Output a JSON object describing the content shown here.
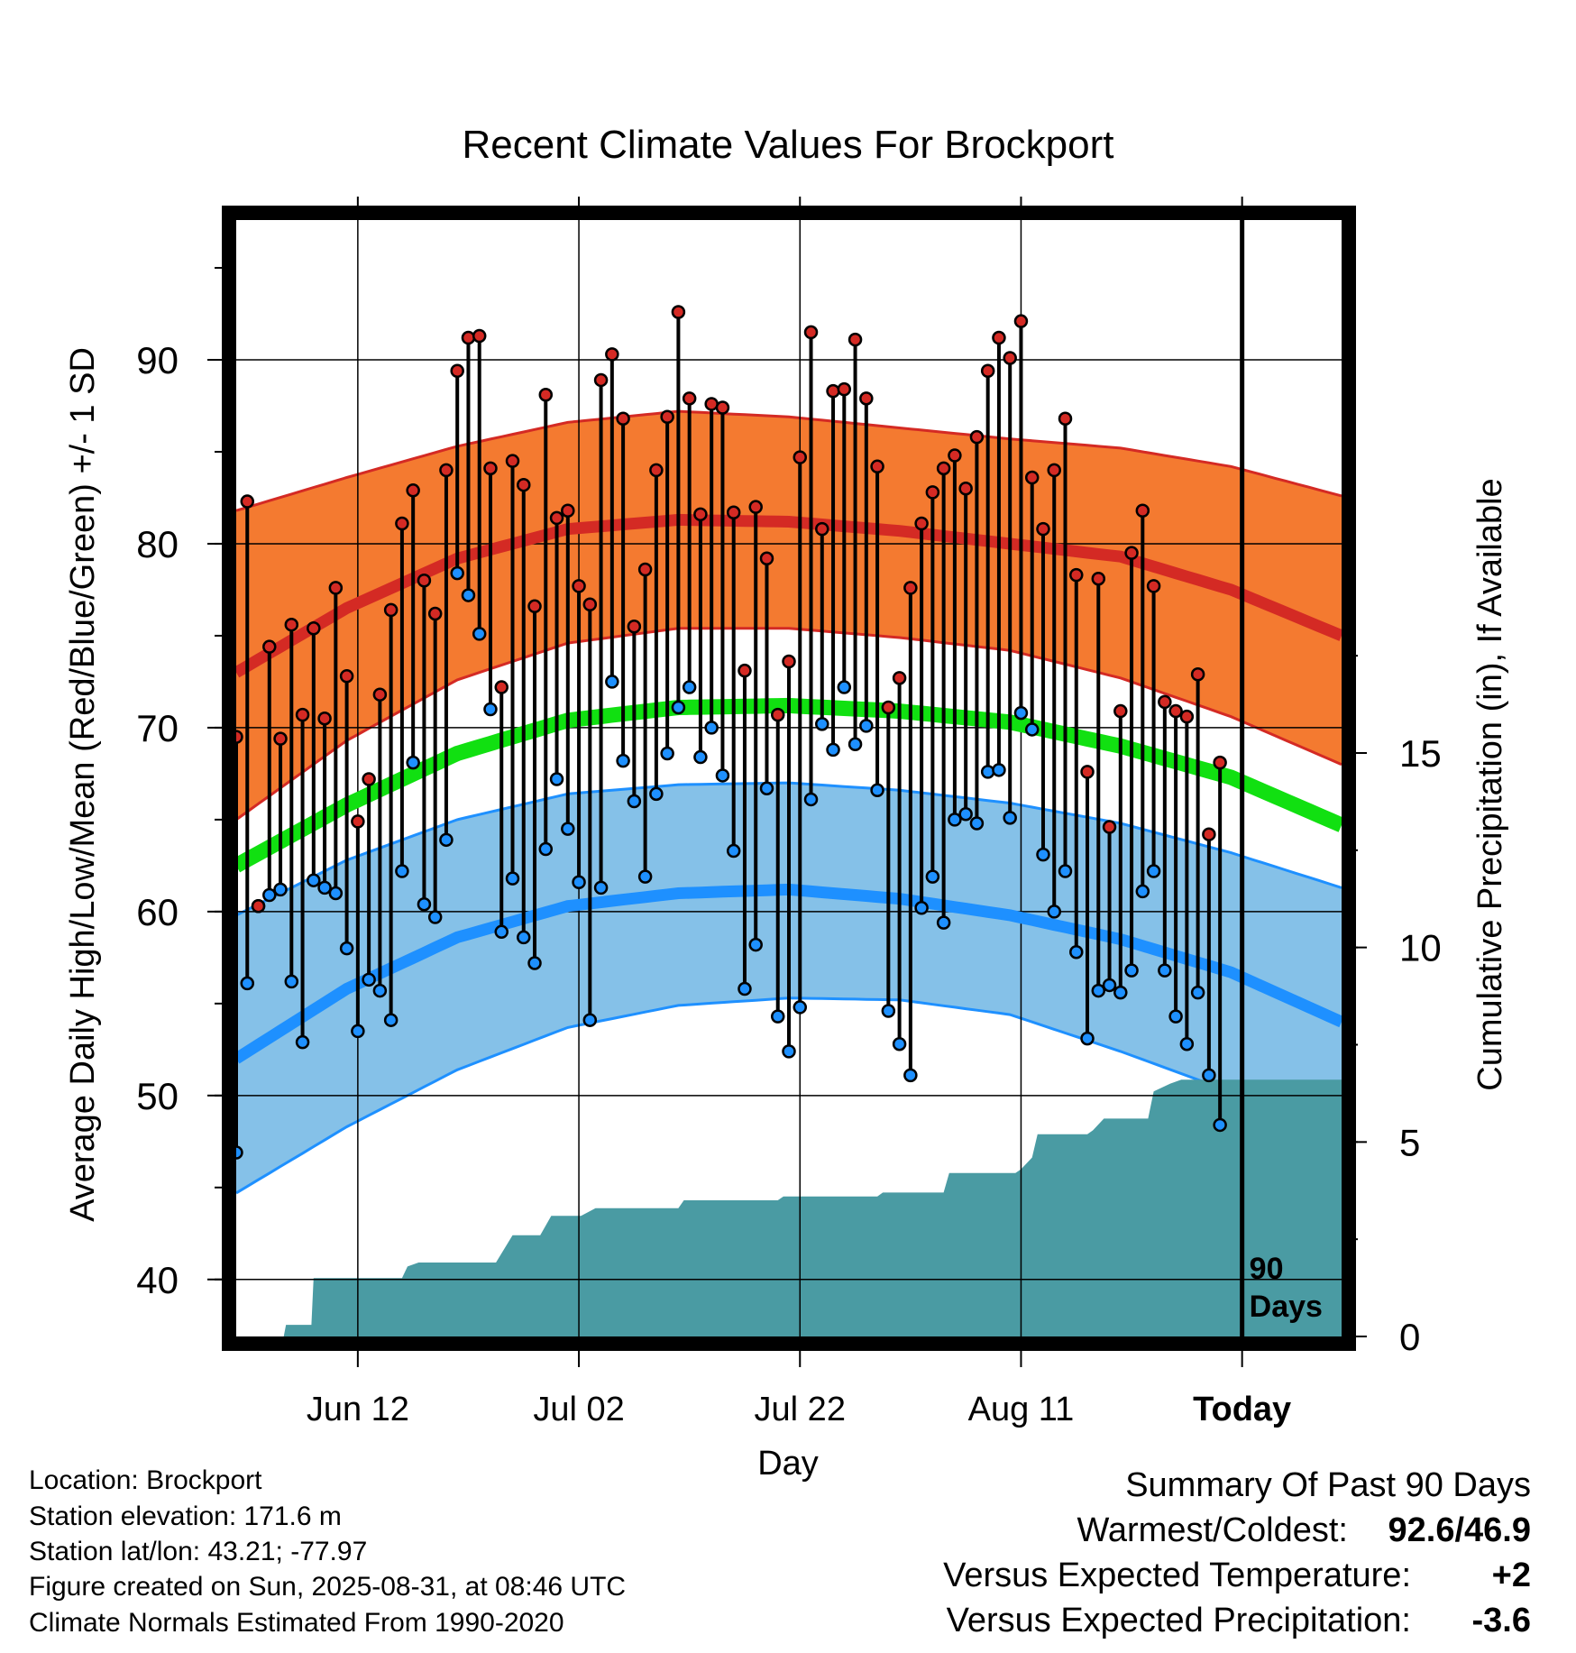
{
  "title": "Recent Climate Values For Brockport",
  "y_axis_label": "Average Daily High/Low/Mean (Red/Blue/Green) +/- 1 SD",
  "y2_axis_label": "Cumulative Precipitation (in), If Available",
  "x_axis_label": "Day",
  "days_label_line1": "90",
  "days_label_line2": "Days",
  "info": {
    "location": "Location: Brockport",
    "elevation": "Station elevation: 171.6 m",
    "latlon": "Station lat/lon: 43.21; -77.97",
    "created": "Figure created on Sun, 2025-08-31, at 08:46 UTC",
    "normals": "Climate Normals Estimated From 1990-2020"
  },
  "summary": {
    "heading": "Summary Of Past 90 Days",
    "warm_cold_label": "Warmest/Coldest:",
    "warm_cold_value": "92.6/46.9",
    "temp_label": "Versus Expected Temperature:",
    "temp_value": "+2",
    "precip_label": "Versus Expected Precipitation:",
    "precip_value": "-3.6"
  },
  "colors": {
    "high_band": "#f47a30",
    "high_line": "#d42a24",
    "mean_line": "#11e011",
    "low_band": "#85c1e8",
    "low_line": "#1e90ff",
    "precip_fill": "#4a9ba3",
    "high_marker": "#d42a24",
    "low_marker": "#1e90ff",
    "temp_delta": "#d42a24",
    "precip_delta": "#a0522d"
  },
  "chart_data": {
    "type": "line",
    "x_ticks": [
      {
        "day": 11,
        "label": "Jun 12"
      },
      {
        "day": 31,
        "label": "Jul 02"
      },
      {
        "day": 51,
        "label": "Jul 22"
      },
      {
        "day": 71,
        "label": "Aug 11"
      },
      {
        "day": 91,
        "label": "Today"
      }
    ],
    "y_ticks": [
      40,
      50,
      60,
      70,
      80,
      90
    ],
    "y2_ticks": [
      0,
      5,
      10,
      15
    ],
    "ylim": [
      36.9,
      97.6
    ],
    "y2lim": [
      0,
      28.7
    ],
    "xlim": [
      0,
      100
    ],
    "today_day": 91,
    "normals": {
      "days": [
        0,
        10,
        20,
        30,
        40,
        50,
        60,
        70,
        80,
        90,
        100
      ],
      "high_mean": [
        73.0,
        76.5,
        79.2,
        80.8,
        81.3,
        81.2,
        80.7,
        80.0,
        79.3,
        77.5,
        75.0
      ],
      "high_upper": [
        81.8,
        83.6,
        85.3,
        86.6,
        87.2,
        86.9,
        86.3,
        85.7,
        85.2,
        84.2,
        82.6
      ],
      "high_lower": [
        65.0,
        69.3,
        72.6,
        74.6,
        75.4,
        75.4,
        74.9,
        74.2,
        72.7,
        70.6,
        68.0
      ],
      "mean": [
        62.5,
        65.8,
        68.6,
        70.4,
        71.1,
        71.2,
        70.9,
        70.3,
        69.0,
        67.3,
        64.7
      ],
      "low_mean": [
        52.0,
        55.8,
        58.6,
        60.3,
        61.0,
        61.2,
        60.7,
        59.8,
        58.5,
        56.7,
        54.0
      ],
      "low_upper": [
        59.8,
        62.8,
        65.0,
        66.4,
        66.9,
        67.0,
        66.6,
        65.9,
        64.8,
        63.2,
        61.3
      ],
      "low_lower": [
        44.7,
        48.3,
        51.4,
        53.7,
        54.9,
        55.3,
        55.2,
        54.4,
        52.4,
        50.2,
        47.2
      ]
    },
    "daily": {
      "start_day": 0,
      "high": [
        69.5,
        82.3,
        60.3,
        74.4,
        69.4,
        75.6,
        70.7,
        75.4,
        70.5,
        77.6,
        72.8,
        64.9,
        67.2,
        71.8,
        76.4,
        81.1,
        82.9,
        78.0,
        76.2,
        84.0,
        89.4,
        91.2,
        91.3,
        84.1,
        72.2,
        84.5,
        83.2,
        76.6,
        88.1,
        81.4,
        81.8,
        77.7,
        76.7,
        88.9,
        90.3,
        86.8,
        75.5,
        78.6,
        84.0,
        86.9,
        92.6,
        87.9,
        81.6,
        87.6,
        87.4,
        81.7,
        73.1,
        82.0,
        79.2,
        70.7,
        73.6,
        84.7,
        91.5,
        80.8,
        88.3,
        88.4,
        91.1,
        87.9,
        84.2,
        71.1,
        72.7,
        77.6,
        81.1,
        82.8,
        84.1,
        84.8,
        83.0,
        85.8,
        89.4,
        91.2,
        90.1,
        92.1,
        83.6,
        80.8,
        84.0,
        86.8,
        78.3,
        67.6,
        78.1,
        64.6,
        70.9,
        79.5,
        81.8,
        77.7,
        71.4,
        70.9,
        70.6,
        72.9,
        64.2,
        68.1
      ],
      "low": [
        46.9,
        56.1,
        60.3,
        60.9,
        61.2,
        56.2,
        52.9,
        61.7,
        61.3,
        61.0,
        58.0,
        53.5,
        56.3,
        55.7,
        54.1,
        62.2,
        68.1,
        60.4,
        59.7,
        63.9,
        78.4,
        77.2,
        75.1,
        71.0,
        58.9,
        61.8,
        58.6,
        57.2,
        63.4,
        67.2,
        64.5,
        61.6,
        54.1,
        61.3,
        72.5,
        68.2,
        66.0,
        61.9,
        66.4,
        68.6,
        71.1,
        72.2,
        68.4,
        70.0,
        67.4,
        63.3,
        55.8,
        58.2,
        66.7,
        54.3,
        52.4,
        54.8,
        66.1,
        70.2,
        68.8,
        72.2,
        69.1,
        70.1,
        66.6,
        54.6,
        52.8,
        51.1,
        60.2,
        61.9,
        59.4,
        65.0,
        65.3,
        64.8,
        67.6,
        67.7,
        65.1,
        70.8,
        69.9,
        63.1,
        60.0,
        62.2,
        57.8,
        53.1,
        55.7,
        56.0,
        55.6,
        56.8,
        61.1,
        62.2,
        56.8,
        54.3,
        52.8,
        55.6,
        51.1,
        48.4
      ]
    },
    "precip_cumulative": [
      [
        0.0,
        0.0
      ],
      [
        4.3,
        0.0
      ],
      [
        4.5,
        0.3
      ],
      [
        6.8,
        0.3
      ],
      [
        7.0,
        1.5
      ],
      [
        15.0,
        1.5
      ],
      [
        15.5,
        1.8
      ],
      [
        16.5,
        1.9
      ],
      [
        23.5,
        1.9
      ],
      [
        25.0,
        2.6
      ],
      [
        27.5,
        2.6
      ],
      [
        28.5,
        3.1
      ],
      [
        31.2,
        3.1
      ],
      [
        32.5,
        3.3
      ],
      [
        40.0,
        3.3
      ],
      [
        40.5,
        3.5
      ],
      [
        49.0,
        3.5
      ],
      [
        49.5,
        3.6
      ],
      [
        58.0,
        3.6
      ],
      [
        58.5,
        3.7
      ],
      [
        64.0,
        3.7
      ],
      [
        64.5,
        4.2
      ],
      [
        70.5,
        4.2
      ],
      [
        71.0,
        4.3
      ],
      [
        72.0,
        4.6
      ],
      [
        72.5,
        5.2
      ],
      [
        77.0,
        5.2
      ],
      [
        77.5,
        5.3
      ],
      [
        78.5,
        5.6
      ],
      [
        82.5,
        5.6
      ],
      [
        83.0,
        6.3
      ],
      [
        84.5,
        6.5
      ],
      [
        85.5,
        6.6
      ],
      [
        100.0,
        6.6
      ]
    ]
  }
}
